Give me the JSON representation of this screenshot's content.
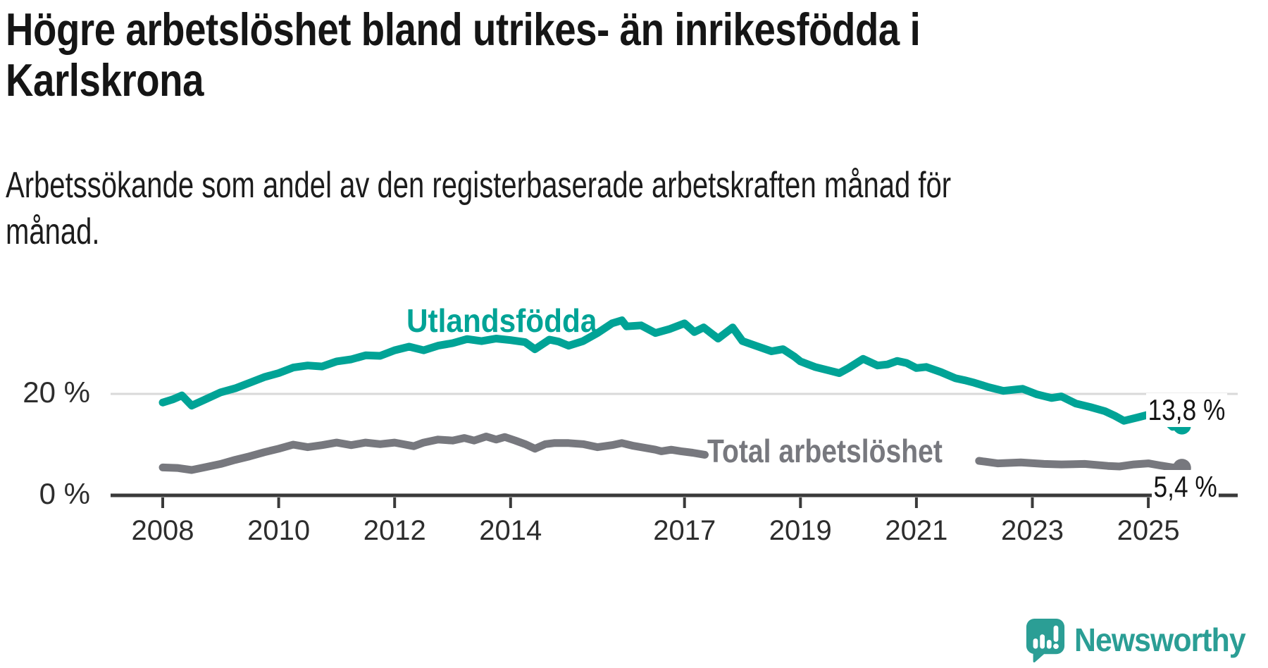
{
  "page": {
    "title_lines": [
      "Högre arbetslöshet bland utrikes- än inrikesfödda i",
      "Karlskrona"
    ],
    "subtitle_lines": [
      "Arbetssökande som andel av den registerbaserade arbetskraften månad för",
      "månad."
    ]
  },
  "branding": {
    "logo_text": "Newsworthy",
    "logo_icon": "speech-bubble-bar-chart-icon",
    "logo_color": "#2b9e95"
  },
  "colors": {
    "accent_teal": "#00a396",
    "series_gray": "#77787e",
    "axis": "#3a3a3a",
    "gridline": "#d9d9d9",
    "text_dark": "#151515"
  },
  "chart_data": {
    "type": "line",
    "title": "Högre arbetslöshet bland utrikes- än inrikesfödda i Karlskrona",
    "subtitle": "Arbetssökande som andel av den registerbaserade arbetskraften månad för månad.",
    "unit": "%",
    "grid": "single horizontal gridline at 20 %",
    "legend_position": "inline labels on lines",
    "x_axis": {
      "range": [
        2008.0,
        2025.6
      ],
      "ticks": [
        2008,
        2010,
        2012,
        2014,
        2017,
        2019,
        2021,
        2023,
        2025
      ],
      "tick_labels": [
        "2008",
        "2010",
        "2012",
        "2014",
        "2017",
        "2019",
        "2021",
        "2023",
        "2025"
      ]
    },
    "y_axis": {
      "range": [
        0,
        46
      ],
      "ticks": [
        {
          "value": 0,
          "label": "0 %",
          "gridline": false
        },
        {
          "value": 20,
          "label": "20 %",
          "gridline": true
        }
      ]
    },
    "series": [
      {
        "name": "Utlandsfödda",
        "color": "#00a396",
        "end_value": 13.8,
        "end_label": "13,8 %",
        "points": [
          [
            2008.0,
            18.3
          ],
          [
            2008.17,
            18.9
          ],
          [
            2008.33,
            19.7
          ],
          [
            2008.5,
            17.7
          ],
          [
            2008.75,
            19.0
          ],
          [
            2009.0,
            20.3
          ],
          [
            2009.25,
            21.1
          ],
          [
            2009.5,
            22.2
          ],
          [
            2009.75,
            23.3
          ],
          [
            2010.0,
            24.1
          ],
          [
            2010.25,
            25.2
          ],
          [
            2010.5,
            25.6
          ],
          [
            2010.75,
            25.4
          ],
          [
            2011.0,
            26.4
          ],
          [
            2011.25,
            26.8
          ],
          [
            2011.5,
            27.6
          ],
          [
            2011.75,
            27.5
          ],
          [
            2012.0,
            28.6
          ],
          [
            2012.25,
            29.3
          ],
          [
            2012.5,
            28.6
          ],
          [
            2012.75,
            29.5
          ],
          [
            2013.0,
            30.0
          ],
          [
            2013.25,
            30.8
          ],
          [
            2013.5,
            30.4
          ],
          [
            2013.75,
            30.9
          ],
          [
            2014.0,
            30.6
          ],
          [
            2014.25,
            30.2
          ],
          [
            2014.42,
            28.8
          ],
          [
            2014.67,
            30.7
          ],
          [
            2014.83,
            30.3
          ],
          [
            2015.0,
            29.5
          ],
          [
            2015.25,
            30.4
          ],
          [
            2015.5,
            32.0
          ],
          [
            2015.75,
            33.9
          ],
          [
            2015.92,
            34.5
          ],
          [
            2016.0,
            33.3
          ],
          [
            2016.25,
            33.5
          ],
          [
            2016.5,
            32.0
          ],
          [
            2016.75,
            32.8
          ],
          [
            2017.0,
            33.9
          ],
          [
            2017.17,
            32.2
          ],
          [
            2017.33,
            33.1
          ],
          [
            2017.58,
            30.9
          ],
          [
            2017.83,
            33.1
          ],
          [
            2018.0,
            30.4
          ],
          [
            2018.25,
            29.4
          ],
          [
            2018.5,
            28.4
          ],
          [
            2018.7,
            28.8
          ],
          [
            2018.9,
            27.3
          ],
          [
            2019.0,
            26.4
          ],
          [
            2019.25,
            25.3
          ],
          [
            2019.5,
            24.6
          ],
          [
            2019.67,
            24.1
          ],
          [
            2019.83,
            25.1
          ],
          [
            2020.08,
            26.9
          ],
          [
            2020.33,
            25.6
          ],
          [
            2020.5,
            25.8
          ],
          [
            2020.67,
            26.5
          ],
          [
            2020.83,
            26.1
          ],
          [
            2021.0,
            25.1
          ],
          [
            2021.17,
            25.3
          ],
          [
            2021.42,
            24.3
          ],
          [
            2021.67,
            23.1
          ],
          [
            2021.83,
            22.7
          ],
          [
            2022.0,
            22.2
          ],
          [
            2022.25,
            21.3
          ],
          [
            2022.5,
            20.6
          ],
          [
            2022.83,
            21.0
          ],
          [
            2023.08,
            19.9
          ],
          [
            2023.33,
            19.2
          ],
          [
            2023.5,
            19.5
          ],
          [
            2023.75,
            18.1
          ],
          [
            2024.0,
            17.4
          ],
          [
            2024.25,
            16.6
          ],
          [
            2024.42,
            15.7
          ],
          [
            2024.58,
            14.7
          ],
          [
            2024.83,
            15.4
          ],
          [
            2025.0,
            15.9
          ],
          [
            2025.08,
            16.3
          ],
          [
            2025.25,
            15.2
          ],
          [
            2025.42,
            13.5
          ],
          [
            2025.5,
            14.2
          ],
          [
            2025.58,
            13.8
          ]
        ]
      },
      {
        "name": "Total arbetslöshet",
        "color": "#77787e",
        "end_value": 5.4,
        "end_label": "5,4 %",
        "label_gap_x": [
          2017.4,
          2022.05
        ],
        "points": [
          [
            2008.0,
            5.5
          ],
          [
            2008.25,
            5.4
          ],
          [
            2008.5,
            5.0
          ],
          [
            2008.75,
            5.6
          ],
          [
            2009.0,
            6.2
          ],
          [
            2009.25,
            7.0
          ],
          [
            2009.5,
            7.7
          ],
          [
            2009.75,
            8.5
          ],
          [
            2010.0,
            9.2
          ],
          [
            2010.25,
            10.0
          ],
          [
            2010.5,
            9.5
          ],
          [
            2010.75,
            9.9
          ],
          [
            2011.0,
            10.4
          ],
          [
            2011.25,
            9.9
          ],
          [
            2011.5,
            10.4
          ],
          [
            2011.75,
            10.1
          ],
          [
            2012.0,
            10.4
          ],
          [
            2012.33,
            9.7
          ],
          [
            2012.5,
            10.4
          ],
          [
            2012.75,
            11.0
          ],
          [
            2013.0,
            10.8
          ],
          [
            2013.2,
            11.3
          ],
          [
            2013.37,
            10.8
          ],
          [
            2013.58,
            11.6
          ],
          [
            2013.75,
            11.0
          ],
          [
            2013.9,
            11.5
          ],
          [
            2014.08,
            10.8
          ],
          [
            2014.25,
            10.1
          ],
          [
            2014.42,
            9.2
          ],
          [
            2014.6,
            10.1
          ],
          [
            2014.75,
            10.3
          ],
          [
            2015.0,
            10.3
          ],
          [
            2015.25,
            10.1
          ],
          [
            2015.5,
            9.5
          ],
          [
            2015.75,
            9.9
          ],
          [
            2015.92,
            10.3
          ],
          [
            2016.1,
            9.8
          ],
          [
            2016.3,
            9.4
          ],
          [
            2016.5,
            9.0
          ],
          [
            2016.6,
            8.7
          ],
          [
            2016.77,
            9.0
          ],
          [
            2016.94,
            8.7
          ],
          [
            2017.14,
            8.4
          ],
          [
            2017.35,
            8.0
          ],
          [
            2017.6,
            7.9
          ],
          [
            2018.0,
            7.8
          ],
          [
            2018.5,
            7.5
          ],
          [
            2019.0,
            7.3
          ],
          [
            2019.5,
            7.2
          ],
          [
            2020.0,
            7.5
          ],
          [
            2020.5,
            7.4
          ],
          [
            2021.0,
            7.2
          ],
          [
            2021.5,
            7.0
          ],
          [
            2022.08,
            6.8
          ],
          [
            2022.4,
            6.3
          ],
          [
            2022.8,
            6.5
          ],
          [
            2023.2,
            6.2
          ],
          [
            2023.5,
            6.1
          ],
          [
            2023.9,
            6.2
          ],
          [
            2024.3,
            5.8
          ],
          [
            2024.5,
            5.7
          ],
          [
            2024.75,
            6.1
          ],
          [
            2025.0,
            6.3
          ],
          [
            2025.2,
            5.9
          ],
          [
            2025.42,
            5.5
          ],
          [
            2025.58,
            5.4
          ]
        ]
      }
    ]
  }
}
